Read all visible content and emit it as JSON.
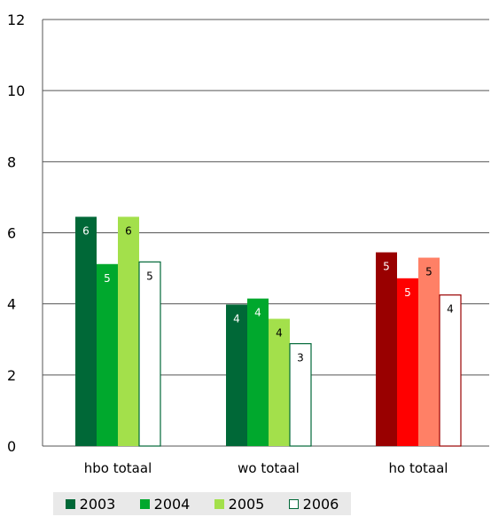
{
  "chart_data": {
    "type": "bar",
    "ylim": [
      0,
      12
    ],
    "yticks": [
      0,
      2,
      4,
      6,
      8,
      10,
      12
    ],
    "grid": true,
    "legend_position": "bottom",
    "categories": [
      "hbo totaal",
      "wo totaal",
      "ho totaal"
    ],
    "series": [
      {
        "name": "2003",
        "values": [
          6.45,
          3.98,
          5.45
        ],
        "labels": [
          "6",
          "4",
          "5"
        ]
      },
      {
        "name": "2004",
        "values": [
          5.12,
          4.15,
          4.72
        ],
        "labels": [
          "5",
          "4",
          "5"
        ]
      },
      {
        "name": "2005",
        "values": [
          6.45,
          3.58,
          5.3
        ],
        "labels": [
          "6",
          "4",
          "5"
        ]
      },
      {
        "name": "2006",
        "values": [
          5.18,
          2.88,
          4.25
        ],
        "labels": [
          "5",
          "3",
          "4"
        ]
      }
    ],
    "colors": {
      "green": [
        "#006837",
        "#00a82d",
        "#a3e04b",
        "#ffffff"
      ],
      "red": [
        "#990000",
        "#ff0000",
        "#ff8066",
        "#ffffff"
      ],
      "green_outline": "#006837",
      "red_outline": "#990000",
      "legend_swatches": [
        "#006837",
        "#00a82d",
        "#a3e04b",
        "#ffffff"
      ]
    }
  }
}
